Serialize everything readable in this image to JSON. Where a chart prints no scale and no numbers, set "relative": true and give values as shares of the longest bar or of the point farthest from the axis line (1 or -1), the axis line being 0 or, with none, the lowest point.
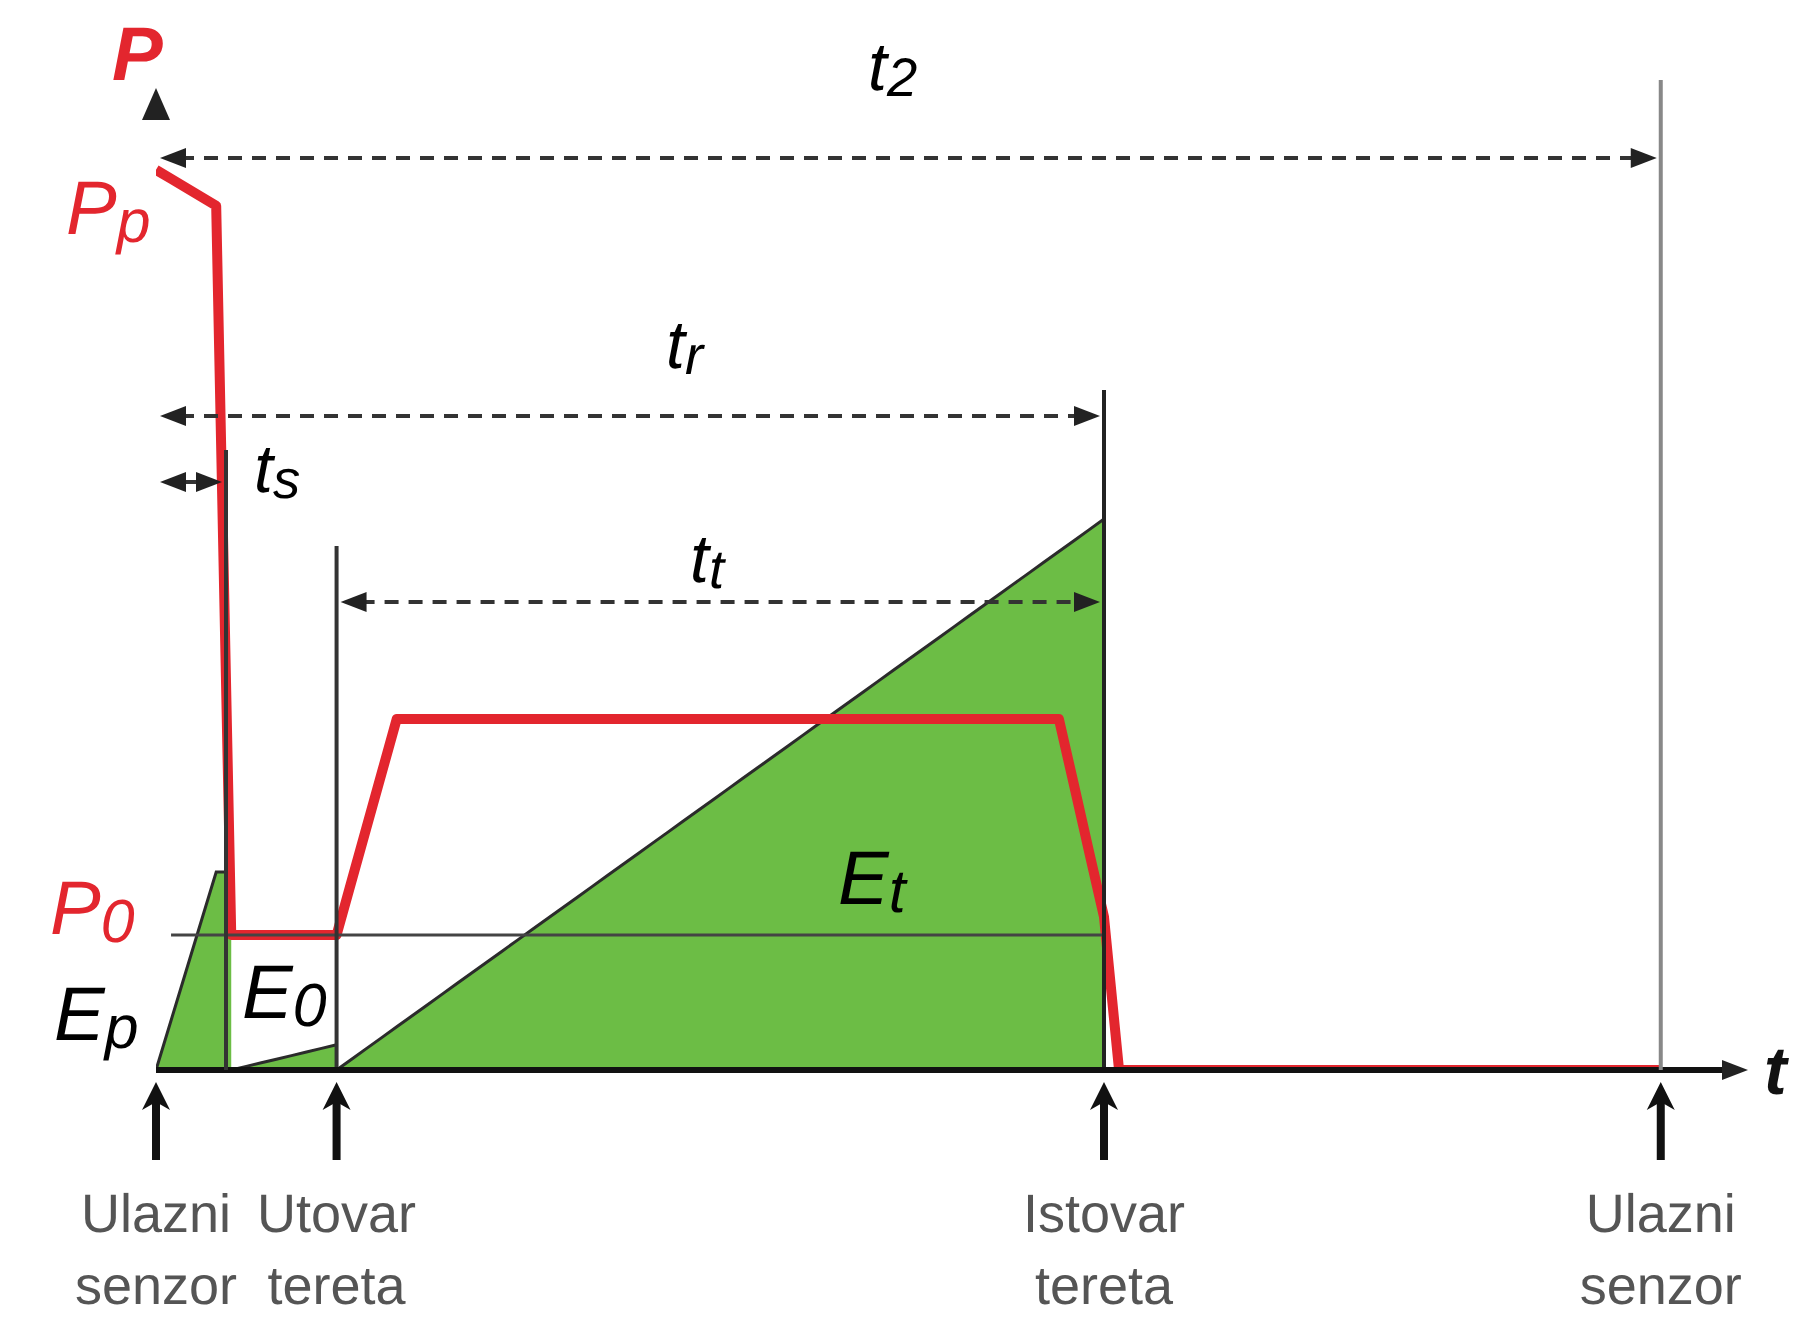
{
  "chart_data": {
    "type": "line",
    "relative": true,
    "xlabel": "t",
    "ylabel": "P",
    "categories": [
      "Ulazni senzor",
      null,
      null,
      null,
      null,
      null,
      null,
      null,
      null,
      null,
      null,
      null,
      "Utovar tereta",
      null,
      null,
      null,
      null,
      null,
      null,
      null,
      null,
      null,
      null,
      null,
      null,
      null,
      null,
      null,
      null,
      null,
      null,
      null,
      null,
      null,
      null,
      null,
      null,
      null,
      null,
      null,
      null,
      null,
      null,
      null,
      null,
      null,
      null,
      null,
      null,
      null,
      null,
      null,
      null,
      null,
      null,
      null,
      null,
      null,
      null,
      null,
      null,
      null,
      null,
      "Istovar tereta",
      null,
      null,
      null,
      null,
      null,
      null,
      null,
      null,
      null,
      null,
      null,
      null,
      null,
      null,
      null,
      null,
      null,
      null,
      null,
      null,
      null,
      null,
      null,
      null,
      null,
      null,
      null,
      null,
      null,
      null,
      null,
      null,
      null,
      null,
      null,
      null,
      "Ulazni senzor",
      null,
      null,
      null,
      null,
      null
    ],
    "series": [
      {
        "type": "area",
        "name": "E$_{p}$",
        "color": "#6cbd45",
        "values": [
          0,
          0.055,
          0.11,
          0.165,
          0.22,
          0.22,
          null,
          null,
          null,
          null,
          null,
          null,
          null,
          null,
          null,
          null,
          null,
          null,
          null,
          null,
          null,
          null,
          null,
          null,
          null,
          null,
          null,
          null,
          null,
          null,
          null,
          null,
          null,
          null,
          null,
          null,
          null,
          null,
          null,
          null,
          null,
          null,
          null,
          null,
          null,
          null,
          null,
          null,
          null,
          null,
          null,
          null,
          null,
          null,
          null,
          null,
          null,
          null,
          null,
          null,
          null,
          null,
          null,
          null,
          null,
          null,
          null,
          null,
          null,
          null,
          null,
          null,
          null,
          null,
          null,
          null,
          null,
          null,
          null,
          null,
          null,
          null,
          null,
          null,
          null,
          null,
          null,
          null,
          null,
          null,
          null,
          null,
          null,
          null,
          null,
          null,
          null,
          null,
          null,
          null,
          null,
          null,
          null,
          null,
          null,
          null
        ]
      },
      {
        "type": "area",
        "name": "E$_{0}$",
        "color": "#6cbd45",
        "values": [
          null,
          null,
          null,
          null,
          null,
          0,
          0.004,
          0.008,
          0.012,
          0.016,
          0.02,
          0.024,
          0.028,
          null,
          null,
          null,
          null,
          null,
          null,
          null,
          null,
          null,
          null,
          null,
          null,
          null,
          null,
          null,
          null,
          null,
          null,
          null,
          null,
          null,
          null,
          null,
          null,
          null,
          null,
          null,
          null,
          null,
          null,
          null,
          null,
          null,
          null,
          null,
          null,
          null,
          null,
          null,
          null,
          null,
          null,
          null,
          null,
          null,
          null,
          null,
          null,
          null,
          null,
          null,
          null,
          null,
          null,
          null,
          null,
          null,
          null,
          null,
          null,
          null,
          null,
          null,
          null,
          null,
          null,
          null,
          null,
          null,
          null,
          null,
          null,
          null,
          null,
          null,
          null,
          null,
          null,
          null,
          null,
          null,
          null,
          null,
          null,
          null,
          null,
          null,
          null,
          null,
          null,
          null,
          null,
          null
        ]
      },
      {
        "type": "area",
        "name": "E$_{t}$",
        "color": "#6cbd45",
        "values": [
          null,
          null,
          null,
          null,
          null,
          null,
          null,
          null,
          null,
          null,
          null,
          null,
          0,
          0.012,
          0.024,
          0.036,
          0.048,
          0.06,
          0.072,
          0.084,
          0.096,
          0.108,
          0.12,
          0.132,
          0.144,
          0.156,
          0.168,
          0.18,
          0.192,
          0.204,
          0.216,
          0.228,
          0.24,
          0.252,
          0.264,
          0.276,
          0.288,
          0.3,
          0.312,
          0.324,
          0.336,
          0.348,
          0.36,
          0.372,
          0.384,
          0.396,
          0.408,
          0.42,
          0.432,
          0.444,
          0.456,
          0.468,
          0.48,
          0.492,
          0.504,
          0.516,
          0.528,
          0.54,
          0.552,
          0.564,
          0.576,
          0.588,
          0.6,
          0.612,
          null,
          null,
          null,
          null,
          null,
          null,
          null,
          null,
          null,
          null,
          null,
          null,
          null,
          null,
          null,
          null,
          null,
          null,
          null,
          null,
          null,
          null,
          null,
          null,
          null,
          null,
          null,
          null,
          null,
          null,
          null,
          null,
          null,
          null,
          null,
          null,
          null,
          null,
          null,
          null,
          null,
          null
        ]
      },
      {
        "color": "#e3262e",
        "values": [
          1,
          0.99,
          0.98,
          0.97,
          0.96,
          0.15,
          0.15,
          0.15,
          0.15,
          0.15,
          0.15,
          0.15,
          0.15,
          0.21,
          0.27,
          0.33,
          0.39,
          0.39,
          0.39,
          0.39,
          0.39,
          0.39,
          0.39,
          0.39,
          0.39,
          0.39,
          0.39,
          0.39,
          0.39,
          0.39,
          0.39,
          0.39,
          0.39,
          0.39,
          0.39,
          0.39,
          0.39,
          0.39,
          0.39,
          0.39,
          0.39,
          0.39,
          0.39,
          0.39,
          0.39,
          0.39,
          0.39,
          0.39,
          0.39,
          0.39,
          0.39,
          0.39,
          0.39,
          0.39,
          0.39,
          0.39,
          0.39,
          0.39,
          0.39,
          0.39,
          0.39,
          0.317,
          0.243,
          0.17,
          0,
          0,
          0,
          0,
          0,
          0,
          0,
          0,
          0,
          0,
          0,
          0,
          0,
          0,
          0,
          0,
          0,
          0,
          0,
          0,
          0,
          0,
          0,
          0,
          0,
          0,
          0,
          0,
          0,
          0,
          0,
          0,
          0,
          0,
          0,
          0,
          0,
          null,
          null,
          null,
          null,
          null
        ]
      },
      {
        "color": "#444444",
        "values": [
          null,
          0.15,
          0.15,
          0.15,
          0.15,
          0.15,
          0.15,
          0.15,
          0.15,
          0.15,
          0.15,
          0.15,
          0.15,
          0.15,
          0.15,
          0.15,
          0.15,
          0.15,
          0.15,
          0.15,
          0.15,
          0.15,
          0.15,
          0.15,
          0.15,
          0.15,
          0.15,
          0.15,
          0.15,
          0.15,
          0.15,
          0.15,
          0.15,
          0.15,
          0.15,
          0.15,
          0.15,
          0.15,
          0.15,
          0.15,
          0.15,
          0.15,
          0.15,
          0.15,
          0.15,
          0.15,
          0.15,
          0.15,
          0.15,
          0.15,
          0.15,
          0.15,
          0.15,
          0.15,
          0.15,
          0.15,
          0.15,
          0.15,
          0.15,
          0.15,
          0.15,
          0.15,
          0.15,
          0.15,
          null,
          null,
          null,
          null,
          null,
          null,
          null,
          null,
          null,
          null,
          null,
          null,
          null,
          null,
          null,
          null,
          null,
          null,
          null,
          null,
          null,
          null,
          null,
          null,
          null,
          null,
          null,
          null,
          null,
          null,
          null,
          null,
          null,
          null,
          null,
          null,
          null,
          null,
          null,
          null,
          null,
          null
        ]
      }
    ],
    "ref_lines": [
      {
        "axis": "x",
        "value": "Utovar tereta",
        "color": "#333333"
      },
      {
        "axis": "x",
        "value": "Istovar tereta",
        "color": "#222222"
      }
    ],
    "annotations": [
      "t$_{2}$",
      "t$_{r}$",
      "t$_{s}$",
      "t$_{t}$",
      "P$_{p}$",
      "P$_{0}$"
    ]
  }
}
